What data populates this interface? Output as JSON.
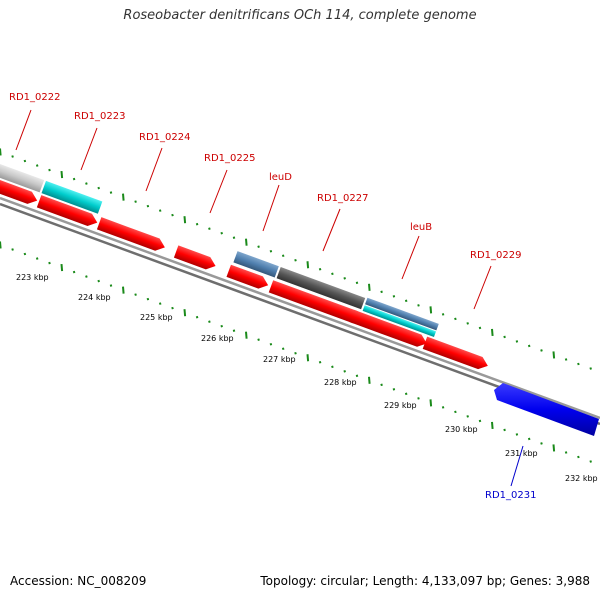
{
  "title": "Roseobacter denitrificans OCh 114, complete genome",
  "footer": {
    "accession": "Accession: NC_008209",
    "stats": "Topology: circular; Length: 4,133,097 bp; Genes: 3,988"
  },
  "colors": {
    "label_red": "#cc0000",
    "label_blue": "#0000cc",
    "tick_green": "#1a8a1a",
    "backbone": "#808080",
    "red_gene": "#ff0000",
    "blue_gene": "#0000ee",
    "cyan_gene": "#00cccc",
    "steel_gene": "#4f7fae",
    "dark_gene": "#555555",
    "light_gene": "#c8c8c8"
  },
  "scale_labels": [
    "223 kbp",
    "224 kbp",
    "225 kbp",
    "226 kbp",
    "227 kbp",
    "228 kbp",
    "229 kbp",
    "230 kbp",
    "231 kbp",
    "232 kbp"
  ],
  "gene_labels": [
    {
      "text": "RD1_0222",
      "color": "red"
    },
    {
      "text": "RD1_0223",
      "color": "red"
    },
    {
      "text": "RD1_0224",
      "color": "red"
    },
    {
      "text": "RD1_0225",
      "color": "red"
    },
    {
      "text": "leuD",
      "color": "red"
    },
    {
      "text": "RD1_0227",
      "color": "red"
    },
    {
      "text": "leuB",
      "color": "red"
    },
    {
      "text": "RD1_0229",
      "color": "red"
    },
    {
      "text": "RD1_0231",
      "color": "blue"
    }
  ]
}
